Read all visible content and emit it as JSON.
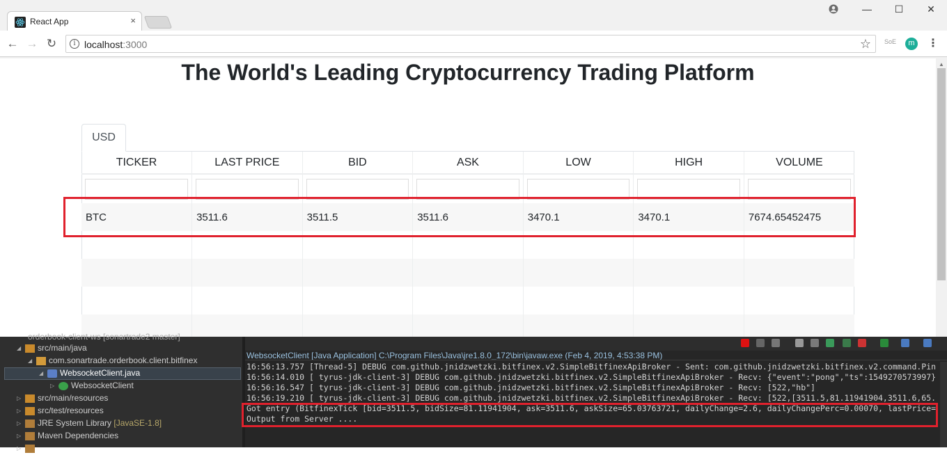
{
  "browser": {
    "tab_title": "React App",
    "tab_close": "×",
    "url_host": "localhost",
    "url_port": ":3000",
    "avatar_letter": "m",
    "ext_label": "SoE",
    "window_minimize": "—",
    "window_maximize": "☐",
    "window_close": "✕"
  },
  "page": {
    "heading": "The World's Leading Cryptocurrency Trading Platform",
    "tab_label": "USD",
    "columns": [
      "TICKER",
      "LAST PRICE",
      "BID",
      "ASK",
      "LOW",
      "HIGH",
      "VOLUME"
    ],
    "rows": [
      [
        "BTC",
        "3511.6",
        "3511.5",
        "3511.6",
        "3470.1",
        "3470.1",
        "7674.65452475"
      ]
    ]
  },
  "ide": {
    "explorer": {
      "project_partial": "orderbook-client-ws [sonartrade2 master]",
      "items": [
        {
          "label": "src/main/java",
          "indent": 1
        },
        {
          "label": "com.sonartrade.orderbook.client.bitfinex",
          "indent": 2
        },
        {
          "label": "WebsocketClient.java",
          "indent": 3
        },
        {
          "label": "WebsocketClient",
          "indent": 4
        },
        {
          "label": "src/main/resources",
          "indent": 1
        },
        {
          "label": "src/test/resources",
          "indent": 1
        },
        {
          "label": "JRE System Library",
          "suffix": "[JavaSE-1.8]",
          "indent": 1
        },
        {
          "label": "Maven Dependencies",
          "indent": 1
        }
      ]
    },
    "console": {
      "title": "WebsocketClient [Java Application] C:\\Program Files\\Java\\jre1.8.0_172\\bin\\javaw.exe (Feb 4, 2019, 4:53:38 PM)",
      "lines": [
        "16:56:13.757 [Thread-5] DEBUG com.github.jnidzwetzki.bitfinex.v2.SimpleBitfinexApiBroker - Sent: com.github.jnidzwetzki.bitfinex.v2.command.Pin",
        "16:56:14.010 [ tyrus-jdk-client-3] DEBUG com.github.jnidzwetzki.bitfinex.v2.SimpleBitfinexApiBroker - Recv: {\"event\":\"pong\",\"ts\":1549270573997}",
        "16:56:16.547 [ tyrus-jdk-client-3] DEBUG com.github.jnidzwetzki.bitfinex.v2.SimpleBitfinexApiBroker - Recv: [522,\"hb\"]",
        "16:56:19.210 [ tyrus-jdk-client-3] DEBUG com.github.jnidzwetzki.bitfinex.v2.SimpleBitfinexApiBroker - Recv: [522,[3511.5,81.11941904,3511.6,65.",
        "Got entry (BitfinexTick [bid=3511.5, bidSize=81.11941904, ask=3511.6, askSize=65.03763721, dailyChange=2.6, dailyChangePerc=0.00070, lastPrice=",
        "Output from Server ...."
      ]
    }
  }
}
